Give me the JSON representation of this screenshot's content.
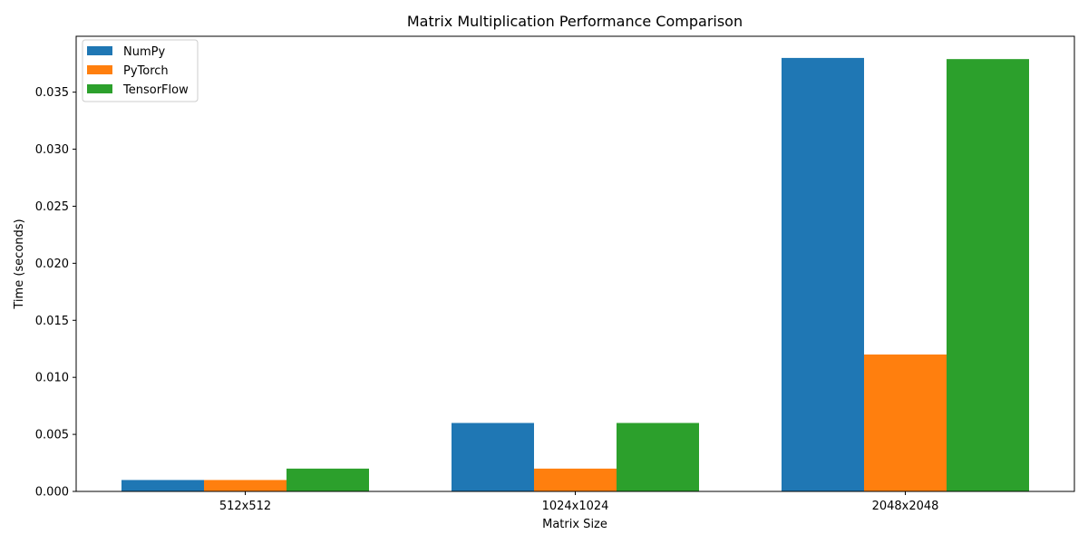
{
  "chart_data": {
    "type": "bar",
    "title": "Matrix Multiplication Performance Comparison",
    "xlabel": "Matrix Size",
    "ylabel": "Time (seconds)",
    "categories": [
      "512x512",
      "1024x1024",
      "2048x2048"
    ],
    "series": [
      {
        "name": "NumPy",
        "color": "#1f77b4",
        "values": [
          0.001,
          0.006,
          0.038
        ]
      },
      {
        "name": "PyTorch",
        "color": "#ff7f0e",
        "values": [
          0.001,
          0.002,
          0.012
        ]
      },
      {
        "name": "TensorFlow",
        "color": "#2ca02c",
        "values": [
          0.002,
          0.006,
          0.0379
        ]
      }
    ],
    "ylim": [
      0,
      0.0399
    ],
    "yticks": [
      0.0,
      0.005,
      0.01,
      0.015,
      0.02,
      0.025,
      0.03,
      0.035
    ],
    "ytick_labels": [
      "0.000",
      "0.005",
      "0.010",
      "0.015",
      "0.020",
      "0.025",
      "0.030",
      "0.035"
    ],
    "legend_position": "top-left",
    "grid": false
  }
}
